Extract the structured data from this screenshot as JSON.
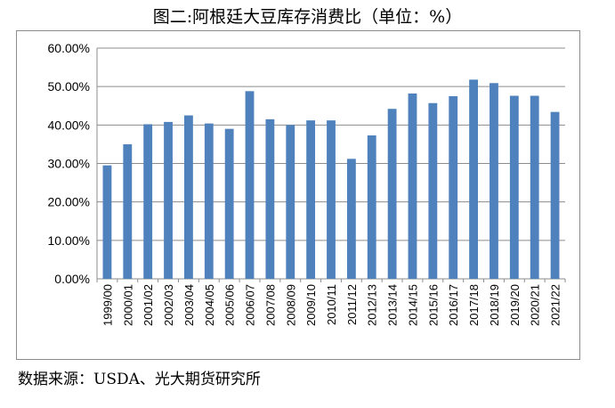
{
  "title": "图二:阿根廷大豆库存消费比（单位：%）",
  "source": "数据来源：USDA、光大期货研究所",
  "chart_data": {
    "type": "bar",
    "title": "图二:阿根廷大豆库存消费比（单位：%）",
    "xlabel": "",
    "ylabel": "",
    "categories": [
      "1999/00",
      "2000/01",
      "2001/02",
      "2002/03",
      "2003/04",
      "2004/05",
      "2005/06",
      "2006/07",
      "2007/08",
      "2008/09",
      "2009/10",
      "2010/11",
      "2011/12",
      "2012/13",
      "2013/14",
      "2014/15",
      "2015/16",
      "2016/17",
      "2017/18",
      "2018/19",
      "2019/20",
      "2020/21",
      "2021/22"
    ],
    "values": [
      29.5,
      35.0,
      40.2,
      40.8,
      42.5,
      40.4,
      39.0,
      48.8,
      41.5,
      40.0,
      41.2,
      41.2,
      31.2,
      37.3,
      44.2,
      48.2,
      45.7,
      47.5,
      51.8,
      50.9,
      47.6,
      47.6,
      43.4
    ],
    "ylim": [
      0,
      60
    ],
    "yticks": [
      "0.00%",
      "10.00%",
      "20.00%",
      "30.00%",
      "40.00%",
      "50.00%",
      "60.00%"
    ],
    "grid": true,
    "bar_color": "#4f81bd",
    "grid_color": "#8c8c8c"
  }
}
